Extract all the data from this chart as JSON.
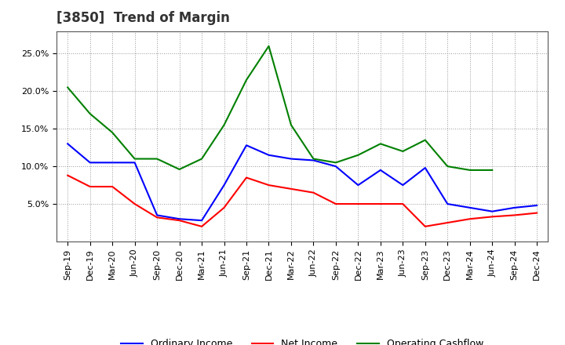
{
  "title": "[3850]  Trend of Margin",
  "x_labels": [
    "Sep-19",
    "Dec-19",
    "Mar-20",
    "Jun-20",
    "Sep-20",
    "Dec-20",
    "Mar-21",
    "Jun-21",
    "Sep-21",
    "Dec-21",
    "Mar-22",
    "Jun-22",
    "Sep-22",
    "Dec-22",
    "Mar-23",
    "Jun-23",
    "Sep-23",
    "Dec-23",
    "Mar-24",
    "Jun-24",
    "Sep-24",
    "Dec-24"
  ],
  "ordinary_income": [
    0.13,
    0.105,
    0.105,
    0.105,
    0.035,
    0.03,
    0.028,
    0.075,
    0.128,
    0.115,
    0.11,
    0.108,
    0.1,
    0.075,
    0.095,
    0.075,
    0.098,
    0.05,
    0.045,
    0.04,
    0.045,
    0.048
  ],
  "net_income": [
    0.088,
    0.073,
    0.073,
    0.05,
    0.032,
    0.028,
    0.02,
    0.045,
    0.085,
    0.075,
    0.07,
    0.065,
    0.05,
    0.05,
    0.05,
    0.05,
    0.02,
    0.025,
    0.03,
    0.033,
    0.035,
    0.038
  ],
  "operating_cashflow": [
    0.205,
    0.17,
    0.145,
    0.11,
    0.11,
    0.096,
    0.11,
    0.155,
    0.215,
    0.26,
    0.155,
    0.11,
    0.105,
    0.115,
    0.13,
    0.12,
    0.135,
    0.1,
    0.095,
    0.095,
    null,
    null
  ],
  "ordinary_income_color": "#0000ff",
  "net_income_color": "#ff0000",
  "operating_cashflow_color": "#008000",
  "ylim_min": 0,
  "ylim_max": 0.28,
  "yticks": [
    0.05,
    0.1,
    0.15,
    0.2,
    0.25
  ],
  "background_color": "#ffffff",
  "grid_color": "#999999",
  "title_fontsize": 12,
  "tick_fontsize": 8,
  "legend_fontsize": 9,
  "legend_labels": [
    "Ordinary Income",
    "Net Income",
    "Operating Cashflow"
  ]
}
